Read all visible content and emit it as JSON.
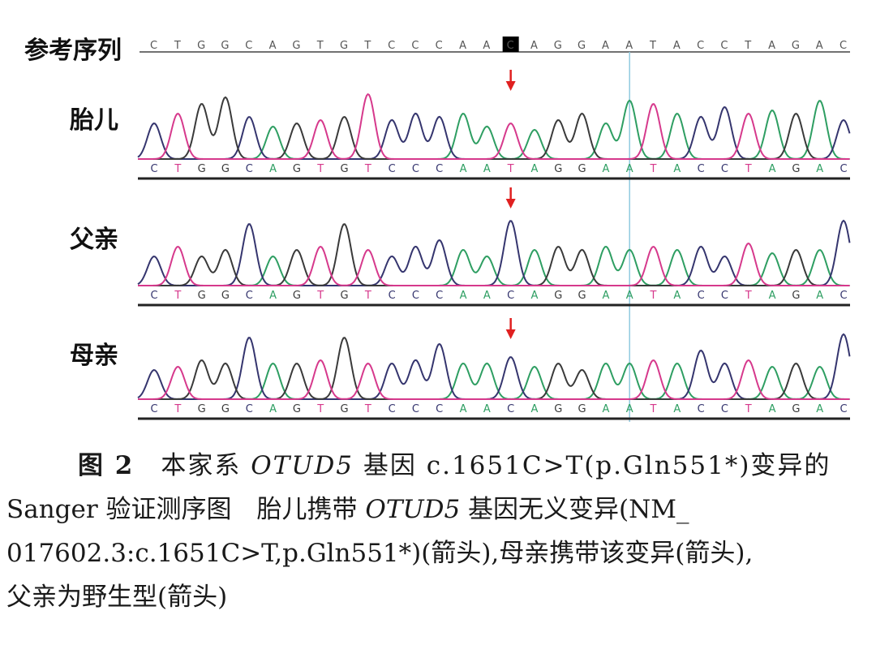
{
  "reference": {
    "label": "参考序列",
    "sequence": "CTGGCAGTGTCCCAACAGGAATACCTAGAC",
    "highlight_index": 15,
    "highlight_color": "#000000"
  },
  "tracks": [
    {
      "label": "胎儿",
      "bases": "CTGGCAGTGTCCCAATAGGAATACCTAGAC",
      "heights": [
        0.55,
        0.7,
        0.85,
        0.95,
        0.65,
        0.5,
        0.55,
        0.6,
        0.65,
        1.0,
        0.6,
        0.7,
        0.65,
        0.7,
        0.5,
        0.55,
        0.45,
        0.6,
        0.7,
        0.55,
        0.9,
        0.85,
        0.7,
        0.65,
        0.8,
        0.7,
        0.75,
        0.7,
        0.9,
        0.6
      ]
    },
    {
      "label": "父亲",
      "bases": "CTGGCAGTGTCCCAACAGGAATACCTAGAC",
      "heights": [
        0.45,
        0.6,
        0.45,
        0.55,
        0.95,
        0.45,
        0.55,
        0.6,
        0.95,
        0.55,
        0.45,
        0.6,
        0.7,
        0.55,
        0.45,
        1.0,
        0.55,
        0.6,
        0.55,
        0.6,
        0.55,
        0.6,
        0.55,
        0.6,
        0.45,
        0.65,
        0.5,
        0.55,
        0.55,
        1.0
      ]
    },
    {
      "label": "母亲",
      "bases": "CTGGCAGTGTCCCAACAGGAATACCTAGAC",
      "heights": [
        0.45,
        0.5,
        0.6,
        0.55,
        0.95,
        0.55,
        0.55,
        0.6,
        0.95,
        0.55,
        0.55,
        0.6,
        0.85,
        0.55,
        0.55,
        0.65,
        0.5,
        0.55,
        0.45,
        0.55,
        0.55,
        0.6,
        0.55,
        0.75,
        0.55,
        0.6,
        0.5,
        0.55,
        0.5,
        1.0
      ]
    }
  ],
  "base_colors": {
    "A": "#2e9e62",
    "C": "#35356e",
    "G": "#3a3a3a",
    "T": "#d6398c"
  },
  "arrow_color": "#e02020",
  "caption": {
    "fig_num": "图 2",
    "line1_a": "本家系 ",
    "gene1": "OTUD5",
    "line1_b": " 基因 c.1651C>T(p.Gln551*)变异的",
    "line2_a": "Sanger 验证测序图　胎儿携带 ",
    "gene2": "OTUD5",
    "line2_b": " 基因无义变异(NM_",
    "line3": "017602.3:c.1651C>T,p.Gln551*)(箭头),母亲携带该变异(箭头),",
    "line4": "父亲为野生型(箭头)"
  }
}
